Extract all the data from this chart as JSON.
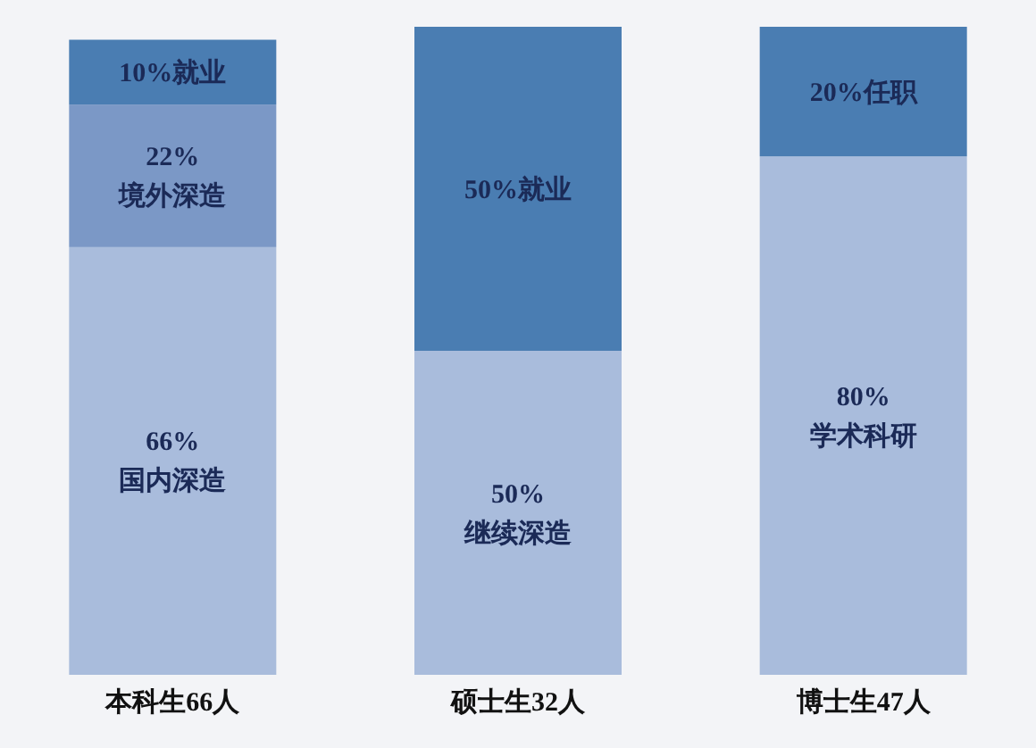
{
  "chart_data": {
    "type": "bar",
    "stacked": true,
    "categories": [
      "本科生66人",
      "硕士生32人",
      "博士生47人"
    ],
    "series": [
      {
        "color": "#a9bcdc",
        "values": [
          66,
          50,
          80
        ],
        "value_labels": [
          "66%\n国内深造",
          "50%\n继续深造",
          "80%\n学术科研"
        ]
      },
      {
        "color": "#7b98c6",
        "values": [
          22,
          null,
          null
        ],
        "value_labels": [
          "22%\n境外深造",
          null,
          null
        ]
      },
      {
        "color": "#4a7db2",
        "values": [
          10,
          50,
          20
        ],
        "value_labels": [
          "10%就业",
          "50%就业",
          "20%任职"
        ]
      }
    ]
  }
}
